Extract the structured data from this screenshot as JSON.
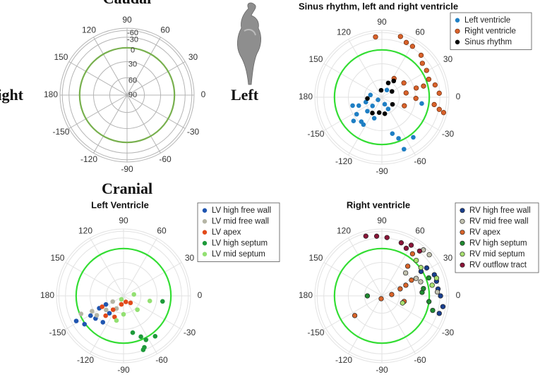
{
  "chart_data": [
    {
      "type": "polar",
      "projection": "equal-area",
      "annotations": {
        "top": "Caudal",
        "bottom": "Cranial",
        "left": "Right",
        "right": "Left"
      },
      "theta_ticks": [
        0,
        30,
        60,
        90,
        120,
        150,
        180,
        -150,
        -120,
        -90,
        -60,
        -30
      ],
      "rlim": [
        90,
        -90
      ],
      "rticks": [
        90,
        60,
        30,
        0,
        -30,
        -60
      ],
      "rtick_labels": true,
      "grid_color": "#b4b4b4",
      "reference_circle": 0,
      "reference_color": "#78b04e",
      "series": []
    },
    {
      "type": "polar",
      "projection": "equal-area",
      "title": "Sinus rhythm, left and right ventricle",
      "theta_ticks": [
        0,
        30,
        60,
        90,
        120,
        150,
        180,
        -150,
        -120,
        -90,
        -60,
        -30
      ],
      "rlim": [
        90,
        -90
      ],
      "rticks": [
        60,
        30,
        0,
        -30,
        -60
      ],
      "rtick_labels": false,
      "grid_color": "#e2e2e2",
      "reference_circle": 0,
      "reference_color": "#33dd33",
      "legend": "upper right",
      "series": [
        {
          "name": "Left ventricle",
          "color": "#1f7fc4",
          "theta": [
            -164,
            -146,
            -130,
            -136,
            -137,
            -146,
            -68,
            -62,
            -140,
            -124,
            -110,
            -74,
            -68,
            -67,
            -52,
            -9,
            -163,
            -160,
            169,
            55
          ],
          "values": [
            36,
            36,
            33,
            55,
            68,
            82,
            77,
            67,
            23,
            31,
            51,
            21,
            7,
            -25,
            -9,
            16,
            61,
            47,
            70,
            75
          ]
        },
        {
          "name": "Right ventricle",
          "color": "#d9622b",
          "edge": "#6b2a0a",
          "theta": [
            96,
            73,
            66,
            59,
            47,
            40,
            31,
            21,
            13,
            4,
            -8,
            -12,
            -14,
            -21,
            10,
            33,
            57,
            -2,
            15,
            15
          ],
          "values": [
            -40,
            -53,
            -37,
            -35,
            -28,
            -14,
            -12,
            -7,
            -19,
            -28,
            -14,
            -32,
            -53,
            48,
            47,
            44,
            51,
            29,
            10,
            26
          ]
        },
        {
          "name": "Sinus rhythm",
          "color": "#000000",
          "theta": [
            -175,
            96,
            66,
            54,
            30,
            -100,
            -80,
            -121,
            -34
          ],
          "values": [
            65,
            78,
            63,
            55,
            70,
            63,
            61,
            58,
            68
          ]
        }
      ]
    },
    {
      "type": "polar",
      "projection": "equal-area",
      "title": "Left Ventricle",
      "theta_ticks": [
        0,
        30,
        60,
        90,
        120,
        150,
        180,
        -150,
        -120,
        -90,
        -60,
        -30
      ],
      "rlim": [
        90,
        -90
      ],
      "rticks": [
        60,
        30,
        0,
        -30,
        -60
      ],
      "rtick_labels": false,
      "grid_color": "#e2e2e2",
      "reference_circle": 0,
      "reference_color": "#33dd33",
      "legend": "upper right",
      "series": [
        {
          "name": "LV high free wall",
          "color": "#1f55b0",
          "theta": [
            -152,
            -144,
            -149,
            -153,
            -154,
            -129,
            -128,
            -141
          ],
          "values": [
            -16,
            -2,
            20,
            42,
            56,
            51,
            30,
            25
          ]
        },
        {
          "name": "LV mid free wall",
          "color": "#b5b5a5",
          "theta": [
            -157,
            -154,
            -144,
            -152,
            -119,
            -141
          ],
          "values": [
            3,
            27,
            31,
            69,
            65,
            51
          ]
        },
        {
          "name": "LV apex",
          "color": "#e24a1a",
          "theta": [
            -153,
            -127,
            -104,
            -69,
            -45,
            -113,
            -132
          ],
          "values": [
            48,
            60,
            75,
            79,
            73,
            50,
            43
          ]
        },
        {
          "name": "LV high septum",
          "color": "#1e9a3a",
          "theta": [
            -76,
            -67,
            -63,
            -68,
            -70,
            -52,
            -8
          ],
          "values": [
            21,
            7,
            -5,
            -22,
            -28,
            -10,
            18
          ]
        },
        {
          "name": "LV mid septum",
          "color": "#93e072",
          "theta": [
            -121,
            8,
            -11,
            -106,
            -90,
            -45
          ],
          "values": [
            83,
            72,
            43,
            45,
            58,
            56
          ]
        }
      ]
    },
    {
      "type": "polar",
      "projection": "equal-area",
      "title": "Right ventricle",
      "theta_ticks": [
        0,
        30,
        60,
        90,
        120,
        150,
        180,
        -150,
        -120,
        -90,
        -60,
        -30
      ],
      "rlim": [
        90,
        -90
      ],
      "rticks": [
        60,
        30,
        0,
        -30,
        -60
      ],
      "rtick_labels": false,
      "grid_color": "#e2e2e2",
      "reference_circle": 0,
      "reference_color": "#33dd33",
      "legend": "upper right",
      "series": [
        {
          "name": "RV high free wall",
          "color": "#1a3f8f",
          "edge": "#222222",
          "theta": [
            32,
            32,
            22,
            15,
            7,
            0,
            -10,
            -17
          ],
          "values": [
            3,
            -14,
            -25,
            -25,
            -25,
            -32,
            -45,
            -37
          ]
        },
        {
          "name": "RV mid free wall",
          "color": "#c2c2b0",
          "edge": "#222222",
          "theta": [
            27,
            20,
            48,
            41,
            4,
            44
          ],
          "values": [
            20,
            14,
            -45,
            -49,
            -22,
            31
          ]
        },
        {
          "name": "RV apex",
          "color": "#d9642a",
          "edge": "#222222",
          "theta": [
            -144,
            -104,
            8,
            21,
            24,
            28,
            49,
            54,
            -14
          ],
          "values": [
            30,
            85,
            73,
            56,
            44,
            30,
            18,
            -12,
            50
          ]
        },
        {
          "name": "RV high septum",
          "color": "#1f8a30",
          "edge": "#222222",
          "theta": [
            180,
            5,
            -7,
            -16,
            10,
            21
          ],
          "values": [
            65,
            16,
            0,
            -14,
            12,
            -7
          ]
        },
        {
          "name": "RV mid septum",
          "color": "#a8e070",
          "edge": "#222222",
          "theta": [
            -19,
            46,
            36,
            12,
            18
          ],
          "values": [
            52,
            -5,
            -2,
            -10,
            -28
          ]
        },
        {
          "name": "RV outflow tract",
          "color": "#8b1538",
          "edge": "#222222",
          "theta": [
            105,
            95,
            85,
            70,
            63,
            60,
            50
          ],
          "values": [
            -45,
            -37,
            -32,
            -25,
            -16,
            -32,
            -32
          ]
        }
      ]
    }
  ]
}
